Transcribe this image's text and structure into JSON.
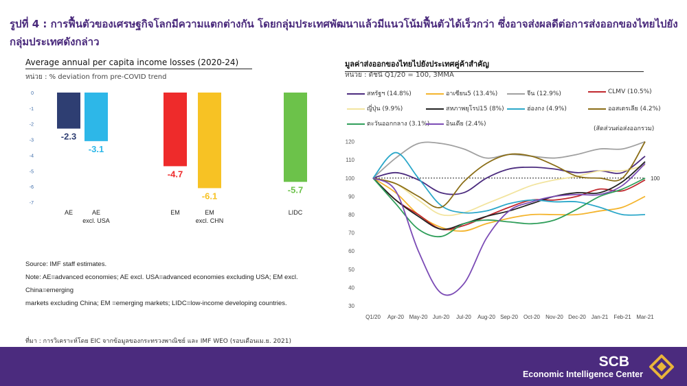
{
  "header": {
    "title": "รูปที่ 4 : การฟื้นตัวของเศรษฐกิจโลกมีความแตกต่างกัน โดยกลุ่มประเทศพัฒนาแล้วมีแนวโน้มฟื้นตัวได้เร็วกว่า ซึ่งอาจส่งผลดีต่อการส่งออกของไทยไปยังกลุ่มประเทศดังกล่าว"
  },
  "left": {
    "subtitle": "Average annual per capita income losses (2020-24)",
    "unit": "หน่วย : % deviation from pre-COVID trend",
    "note_lines": [
      "Source: IMF staff estimates.",
      "Note: AE=advanced economies; AE excl. USA=advanced economies excluding USA; EM excl. China=emerging",
      "markets excluding China; EM =emerging markets; LIDC=low-income developing countries."
    ]
  },
  "right": {
    "subtitle": "มูลค่าส่งออกของไทยไปยังประเทศคู่ค้าสำคัญ",
    "unit": "หน่วย : ดัชนี Q1/20 = 100, 3MMA",
    "share_note": "(สัดส่วนต่อส่งออกรวม)"
  },
  "source": "ที่มา : การวิเคราะห์โดย EIC จากข้อมูลของกระทรวงพาณิชย์ และ IMF WEO (รอบเดือนเม.ย. 2021)",
  "footer": {
    "brand": "SCB",
    "subbrand": "Economic Intelligence Center"
  },
  "chart_data": [
    {
      "type": "bar",
      "title": "Average annual per capita income losses (2020-24)",
      "ylim": [
        -7,
        0
      ],
      "yticks": [
        "0",
        "-1",
        "-2",
        "-3",
        "-4",
        "-5",
        "-6",
        "-7"
      ],
      "categories": [
        "AE",
        "AE\nexcl. USA",
        "EM",
        "EM\nexcl. CHN",
        "LIDC"
      ],
      "values": [
        -2.3,
        -3.1,
        -4.7,
        -6.1,
        -5.7
      ],
      "labels": [
        "-2.3",
        "-3.1",
        "-4.7",
        "-6.1",
        "-5.7"
      ],
      "colors": [
        "#2e3e72",
        "#2db7e8",
        "#ee2b2b",
        "#f7c224",
        "#6cc24a"
      ],
      "label_colors": [
        "#2e3e72",
        "#2db7e8",
        "#ee2b2b",
        "#f7c224",
        "#6cc24a"
      ]
    },
    {
      "type": "line",
      "title": "มูลค่าส่งออกของไทยไปยังประเทศคู่ค้าสำคัญ",
      "x": [
        "Q1/20",
        "Apr-20",
        "May-20",
        "Jun-20",
        "Jul-20",
        "Aug-20",
        "Sep-20",
        "Oct-20",
        "Nov-20",
        "Dec-20",
        "Jan-21",
        "Feb-21",
        "Mar-21"
      ],
      "ylim": [
        30,
        130
      ],
      "yticks": [
        "30",
        "40",
        "50",
        "60",
        "70",
        "80",
        "90",
        "100",
        "110",
        "120",
        "130"
      ],
      "reference_line": {
        "value": 100,
        "label": "100"
      },
      "series": [
        {
          "name": "สหรัฐฯ (14.8%)",
          "color": "#4b2b7e",
          "values": [
            100,
            103,
            99,
            92,
            92,
            100,
            105,
            106,
            105,
            103,
            104,
            103,
            112
          ]
        },
        {
          "name": "อาเซียน5 (13.4%)",
          "color": "#f4b42c",
          "values": [
            100,
            92,
            80,
            73,
            71,
            75,
            78,
            80,
            80,
            80,
            82,
            84,
            90
          ]
        },
        {
          "name": "จีน (12.9%)",
          "color": "#a0a0a0",
          "values": [
            100,
            111,
            119,
            119,
            116,
            111,
            113,
            112,
            111,
            113,
            116,
            116,
            120
          ]
        },
        {
          "name": "CLMV (10.5%)",
          "color": "#c0272d",
          "values": [
            100,
            88,
            80,
            72,
            74,
            79,
            84,
            88,
            88,
            90,
            94,
            93,
            99
          ]
        },
        {
          "name": "ญี่ปุ่น (9.9%)",
          "color": "#f2e49e",
          "values": [
            100,
            97,
            88,
            80,
            81,
            86,
            91,
            96,
            99,
            101,
            104,
            104,
            107
          ]
        },
        {
          "name": "สหภาพยุโรป15 (8%)",
          "color": "#222222",
          "values": [
            100,
            88,
            79,
            72,
            75,
            79,
            82,
            86,
            90,
            92,
            92,
            98,
            109
          ]
        },
        {
          "name": "ฮ่องกง (4.9%)",
          "color": "#2aa7c9",
          "values": [
            100,
            114,
            100,
            85,
            81,
            82,
            86,
            88,
            87,
            87,
            84,
            80,
            80
          ]
        },
        {
          "name": "ออสเตรเลีย (4.2%)",
          "color": "#8a6d16",
          "values": [
            100,
            97,
            90,
            84,
            98,
            108,
            113,
            112,
            107,
            101,
            100,
            100,
            120
          ]
        },
        {
          "name": "ตะวันออกกลาง (3.1%)",
          "color": "#2f9e5a",
          "values": [
            100,
            86,
            72,
            68,
            75,
            77,
            76,
            75,
            77,
            83,
            90,
            94,
            100
          ]
        },
        {
          "name": "อินเดีย (2.4%)",
          "color": "#7b4bb5",
          "values": [
            100,
            93,
            60,
            37,
            42,
            67,
            82,
            87,
            90,
            91,
            91,
            96,
            108
          ]
        }
      ]
    }
  ]
}
